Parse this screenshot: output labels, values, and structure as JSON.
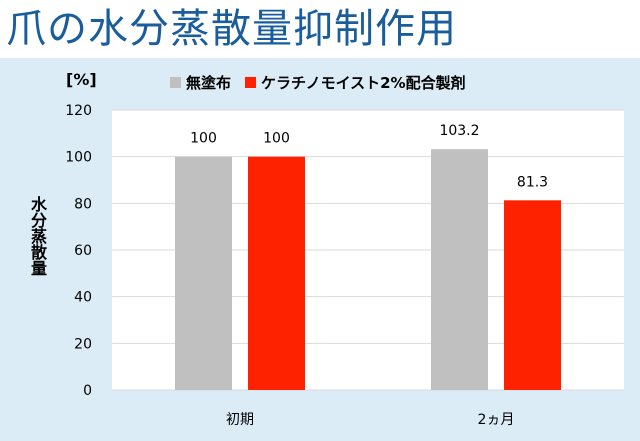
{
  "headline": "爪の水分蒸散量抑制作用",
  "chart_data": {
    "type": "bar",
    "unit_label": "[%]",
    "ylabel": "水分蒸散量",
    "categories": [
      "初期",
      "2ヵ月"
    ],
    "series": [
      {
        "name": "無塗布",
        "color": "#c0c0c0",
        "values": [
          100,
          103.2
        ],
        "labels": [
          "100",
          "103.2"
        ]
      },
      {
        "name": "ケラチノモイスト2%配合製剤",
        "color": "#ff2200",
        "values": [
          100,
          81.3
        ],
        "labels": [
          "100",
          "81.3"
        ]
      }
    ],
    "yticks": [
      0,
      20,
      40,
      60,
      80,
      100,
      120
    ],
    "ylim": [
      0,
      120
    ],
    "grid": true,
    "legend_position": "top"
  },
  "colors": {
    "headline": "#1a5d9c",
    "panel_background": "#dcecf6",
    "gridline": "#d9d9d9"
  }
}
